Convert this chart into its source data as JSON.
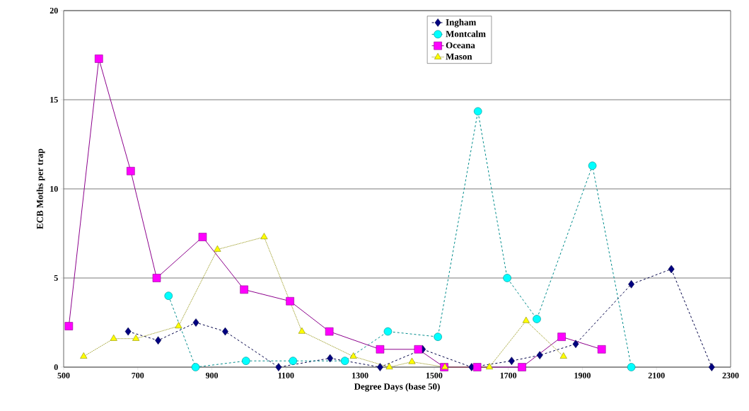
{
  "chart_data": {
    "type": "line",
    "xlabel": "Degree Days (base 50)",
    "ylabel": "ECB Moths per trap",
    "xlim": [
      500,
      2300
    ],
    "xticks": [
      500,
      700,
      900,
      1100,
      1300,
      1500,
      1700,
      1900,
      2100,
      2300
    ],
    "ylim": [
      0,
      20
    ],
    "yticks": [
      0,
      5,
      10,
      15,
      20
    ],
    "grid": "y",
    "legend": "top right",
    "series": [
      {
        "name": "Ingham",
        "color": "#000080",
        "marker": "diamond",
        "line_style": "dashed",
        "x": [
          674,
          755,
          857,
          936,
          1080,
          1219,
          1354,
          1469,
          1601,
          1709,
          1785,
          1882,
          2032,
          2140,
          2249
        ],
        "values": [
          2.0,
          1.5,
          2.5,
          2.0,
          0,
          0.5,
          0,
          1.0,
          0,
          0.35,
          0.67,
          1.3,
          4.65,
          5.5,
          0
        ]
      },
      {
        "name": "Montcalm",
        "color": "#00ffff",
        "marker": "circle",
        "line_style": "dashed",
        "x": [
          783,
          856,
          992,
          1119,
          1259,
          1375,
          1510,
          1618,
          1697,
          1777,
          1927,
          2032
        ],
        "values": [
          4.0,
          0,
          0.35,
          0.35,
          0.35,
          2.0,
          1.7,
          14.35,
          5.0,
          2.7,
          11.3,
          0
        ]
      },
      {
        "name": "Oceana",
        "color": "#ff00ff",
        "marker": "square",
        "line_style": "solid",
        "x": [
          514,
          595,
          681,
          751,
          875,
          987,
          1111,
          1217,
          1354,
          1457,
          1527,
          1616,
          1737,
          1844,
          1952
        ],
        "values": [
          2.3,
          17.3,
          11.0,
          5.0,
          7.3,
          4.35,
          3.7,
          2.0,
          1.0,
          1.0,
          0,
          0,
          0,
          1.7,
          1.0
        ]
      },
      {
        "name": "Mason",
        "color": "#ffff00",
        "marker": "triangle",
        "line_style": "dotted",
        "x": [
          554,
          635,
          695,
          810,
          915,
          1041,
          1143,
          1282,
          1379,
          1440,
          1529,
          1649,
          1748,
          1849
        ],
        "values": [
          0.6,
          1.6,
          1.6,
          2.3,
          6.6,
          7.3,
          2.0,
          0.6,
          0,
          0.3,
          0,
          0,
          2.6,
          0.6
        ]
      }
    ]
  }
}
